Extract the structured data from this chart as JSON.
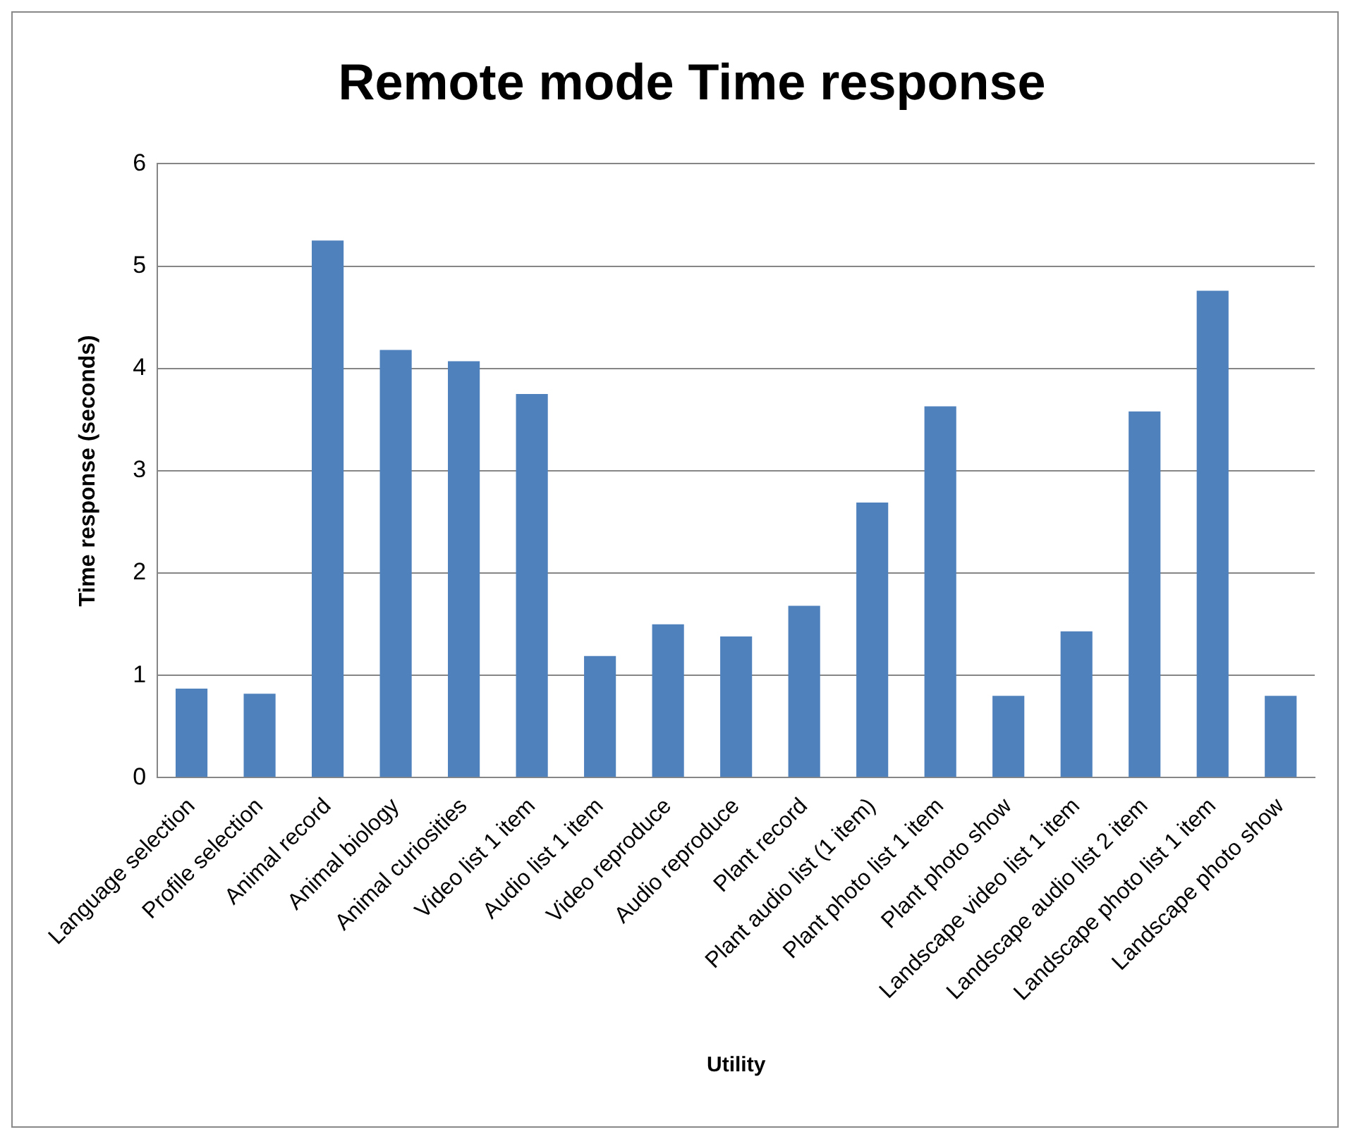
{
  "chart_data": {
    "type": "bar",
    "title": "Remote mode Time response",
    "xlabel": "Utility",
    "ylabel": "Time response (seconds)",
    "categories": [
      "Language selection",
      "Profile selection",
      "Animal record",
      "Animal biology",
      "Animal curiosities",
      "Video list 1 item",
      "Audio list 1 item",
      "Video reproduce",
      "Audio reproduce",
      "Plant record",
      "Plant audio list (1 item)",
      "Plant photo list 1 item",
      "Plant photo show",
      "Landscape video list 1 item",
      "Landscape audio list 2 item",
      "Landscape photo list 1 item",
      "Landscape photo show"
    ],
    "values": [
      0.87,
      0.82,
      5.25,
      4.18,
      4.07,
      3.75,
      1.19,
      1.5,
      1.38,
      1.68,
      2.69,
      3.63,
      0.8,
      1.43,
      3.58,
      4.76,
      0.8
    ],
    "color": "#4f81bd",
    "ylim": [
      0,
      6
    ],
    "yticks": [
      0,
      1,
      2,
      3,
      4,
      5,
      6
    ],
    "grid": "y",
    "legend": false
  }
}
